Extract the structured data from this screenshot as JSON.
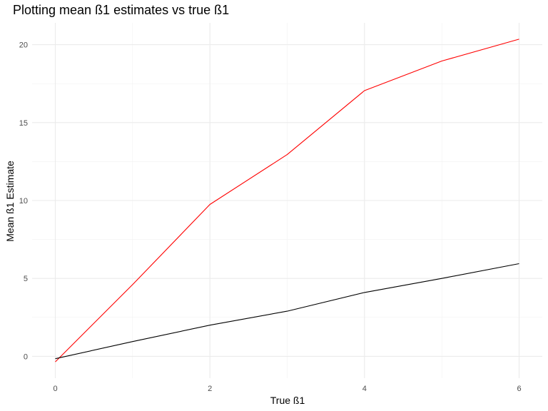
{
  "chart_data": {
    "type": "line",
    "title": "Plotting mean ß1 estimates vs true ß1",
    "xlabel": "True ß1",
    "ylabel": "Mean ß1 Estimate",
    "x": [
      0,
      1,
      2,
      3,
      4,
      5,
      6
    ],
    "xlim": [
      -0.3,
      6.3
    ],
    "ylim": [
      -1.4,
      21.4
    ],
    "xticks": [
      0,
      2,
      4,
      6
    ],
    "yticks": [
      0,
      5,
      10,
      15,
      20
    ],
    "grid": true,
    "series": [
      {
        "color": "#ff0000",
        "values": [
          -0.35,
          4.6,
          9.75,
          12.95,
          17.05,
          18.95,
          20.35
        ]
      },
      {
        "color": "#000000",
        "values": [
          -0.15,
          0.95,
          2.0,
          2.9,
          4.1,
          5.0,
          5.95
        ]
      }
    ]
  }
}
